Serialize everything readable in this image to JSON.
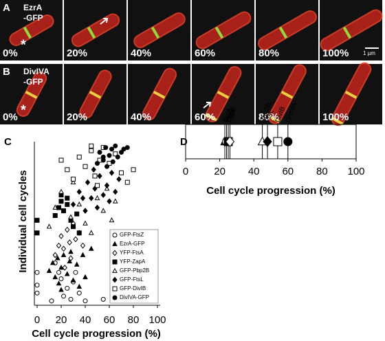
{
  "panels": {
    "A": {
      "label": "A",
      "marker": [
        "EzrA",
        "-GFP"
      ],
      "annotation": "*",
      "frames": [
        "0%",
        "20%",
        "40%",
        "60%",
        "80%",
        "100%"
      ],
      "scale_bar": "1 µm"
    },
    "B": {
      "label": "B",
      "marker": [
        "DivIVA",
        "-GFP"
      ],
      "annotation": "*",
      "frames": [
        "0%",
        "20%",
        "40%",
        "60%",
        "80%",
        "100%"
      ]
    }
  },
  "chart_data": [
    {
      "type": "scatter",
      "panel_label": "C",
      "x_label": "Cell cycle progression (%)",
      "y_label": "Individual cell cycles",
      "xlim": [
        0,
        100
      ],
      "xticks": [
        0,
        20,
        40,
        60,
        80,
        100
      ],
      "ylim": [
        0,
        100
      ],
      "legend": "lower-right",
      "series": [
        {
          "name": "GFP-FtsZ",
          "marker": "circle-open",
          "x": [
            0,
            0,
            0,
            15,
            18,
            20,
            22,
            25,
            28,
            30,
            35,
            40,
            55,
            12,
            32
          ],
          "values": [
            11,
            6,
            19,
            25,
            19,
            15,
            4,
            9,
            2,
            13,
            6,
            1,
            2,
            1,
            19
          ]
        },
        {
          "name": "EzrA-GFP",
          "marker": "triangle-filled",
          "x": [
            10,
            13,
            15,
            17,
            18,
            20,
            22,
            25,
            27,
            30,
            33,
            35,
            38,
            40,
            45,
            20,
            28
          ],
          "values": [
            20,
            25,
            16,
            28,
            12,
            22,
            30,
            18,
            26,
            14,
            24,
            10,
            30,
            16,
            34,
            8,
            32
          ]
        },
        {
          "name": "YFP-FtsA",
          "marker": "diamond-open",
          "x": [
            15,
            18,
            20,
            22,
            25,
            27,
            30,
            32,
            35,
            38,
            23,
            28
          ],
          "values": [
            30,
            36,
            42,
            34,
            46,
            38,
            50,
            40,
            44,
            36,
            22,
            28
          ]
        },
        {
          "name": "YFP-ZapA",
          "marker": "square-filled",
          "x": [
            0,
            0,
            15,
            18,
            20,
            22,
            25,
            28,
            30,
            33,
            35,
            20,
            25
          ],
          "values": [
            44,
            52,
            55,
            60,
            64,
            58,
            62,
            52,
            48,
            56,
            44,
            68,
            66
          ]
        },
        {
          "name": "GFP-Pbp2B",
          "marker": "triangle-open",
          "x": [
            10,
            15,
            20,
            28,
            35,
            40,
            45,
            50,
            55,
            58,
            62,
            65,
            30,
            48
          ],
          "values": [
            48,
            60,
            70,
            54,
            62,
            50,
            44,
            66,
            58,
            72,
            52,
            64,
            76,
            80
          ]
        },
        {
          "name": "GFP-FtsL",
          "marker": "diamond-filled",
          "x": [
            30,
            35,
            40,
            42,
            45,
            48,
            50,
            52,
            55,
            58,
            60,
            62,
            65,
            68,
            38,
            47
          ],
          "values": [
            62,
            70,
            58,
            76,
            66,
            72,
            60,
            80,
            68,
            74,
            64,
            82,
            70,
            78,
            66,
            84
          ]
        },
        {
          "name": "GFP-DivIB",
          "marker": "square-open",
          "x": [
            20,
            25,
            30,
            35,
            40,
            45,
            48,
            50,
            55,
            60,
            65,
            70,
            75,
            80,
            45,
            52
          ],
          "values": [
            90,
            84,
            78,
            92,
            86,
            96,
            80,
            74,
            98,
            88,
            94,
            82,
            76,
            84,
            99,
            90
          ]
        },
        {
          "name": "DivIVA-GFP",
          "marker": "circle-filled",
          "x": [
            50,
            52,
            55,
            57,
            58,
            60,
            62,
            63,
            65,
            67,
            70,
            72,
            75,
            55
          ],
          "values": [
            88,
            95,
            90,
            98,
            86,
            93,
            97,
            89,
            99,
            92,
            95,
            97,
            98,
            92
          ]
        }
      ]
    },
    {
      "type": "dot",
      "panel_label": "D",
      "x_label": "Cell cycle progression (%)",
      "xlim": [
        0,
        100
      ],
      "xticks": [
        0,
        20,
        40,
        60,
        80,
        100
      ],
      "series": [
        {
          "name": "EzrA",
          "marker": "triangle-filled",
          "values": [
            23
          ]
        },
        {
          "name": "FtsZ",
          "marker": "circle-open",
          "values": [
            24
          ]
        },
        {
          "name": "ZapA",
          "marker": "square-filled",
          "values": [
            25
          ]
        },
        {
          "name": "FtsA",
          "marker": "diamond-open",
          "values": [
            26
          ]
        },
        {
          "name": "Pbp2B",
          "marker": "triangle-open",
          "values": [
            45
          ]
        },
        {
          "name": "FtsL",
          "marker": "diamond-filled",
          "values": [
            48
          ]
        },
        {
          "name": "DivIB",
          "marker": "square-open",
          "values": [
            54
          ]
        },
        {
          "name": "DivIVA",
          "marker": "circle-filled",
          "values": [
            60
          ]
        }
      ]
    }
  ]
}
